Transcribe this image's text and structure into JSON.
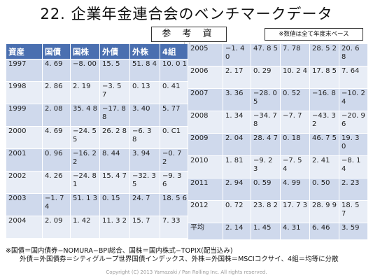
{
  "title": "22. 企業年金連合会のベンチマークデータ",
  "ref_badge": "参 考 資 料",
  "note_top_right": "※数値は全て年度末ベース",
  "headers": [
    "資産",
    "国債",
    "国株",
    "外債",
    "外株",
    "4組"
  ],
  "left_rows": [
    [
      "1997",
      "4. 69",
      "−8. 00",
      "15. 5",
      "51. 8 4",
      "10. 0 1"
    ],
    [
      "1998",
      "2. 86",
      "2. 19",
      "−3. 5 7",
      "0. 13",
      "0. 41"
    ],
    [
      "1999",
      "2. 08",
      "35. 4 8",
      "−17. 88",
      "3. 40",
      "5. 77"
    ],
    [
      "2000",
      "4. 69",
      "−24. 55",
      "26. 2 8",
      "−6. 3 8",
      "0. C1"
    ],
    [
      "2001",
      "0. 96",
      "−16. 22",
      "8. 44",
      "3. 94",
      "−0. 7 2"
    ],
    [
      "2002",
      "4. 26",
      "−24. 81",
      "15. 4 7",
      "−32. 35",
      "−9. 3 6"
    ],
    [
      "2003",
      "−1. 7 4",
      "51. 1 3",
      "0. 15",
      "24. 7",
      "18. 5 6"
    ],
    [
      "2004",
      "2. 09",
      "1. 42",
      "11. 3 2",
      "15. 7",
      "7. 33"
    ]
  ],
  "right_rows": [
    [
      "2005",
      "−1. 4 0",
      "47. 8 5",
      "7. 78",
      "28. 5 2",
      "20. 6 8"
    ],
    [
      "2006",
      "2. 17",
      "0. 29",
      "10. 2 4",
      "17. 8 5",
      "7. 64"
    ],
    [
      "2007",
      "3. 36",
      "−28. 05",
      "0. 52",
      "−16. 8",
      "−10. 24"
    ],
    [
      "2008",
      "1. 34",
      "−34. 78",
      "−7. 7",
      "−43. 32",
      "−20. 96"
    ],
    [
      "2009",
      "2. 04",
      "28. 4 7",
      "0. 18",
      "46. 7 5",
      "19. 3 0"
    ],
    [
      "2010",
      "1. 81",
      "−9. 2 3",
      "−7. 5 4",
      "2. 41",
      "−8. 1 4"
    ],
    [
      "2011",
      "2. 94",
      "0. 59",
      "4. 99",
      "0. 50",
      "2. 23"
    ],
    [
      "2012",
      "0. 72",
      "23. 8 2",
      "17. 7 3",
      "28. 9 9",
      "18. 5 7"
    ],
    [
      "平均",
      "2. 14",
      "1. 45",
      "4. 31",
      "6. 46",
      "3. 59"
    ]
  ],
  "footnote_line1": "※国債＝国内債券−NOMURA−BPI総合、国株＝国内株式−TOPIX(配当込み)",
  "footnote_line2": "外債＝外国債券＝シティグループ世界国債インデックス、外株＝外国株＝MSCIコクサイ、4組＝均等に分散",
  "copyright": "Copyright (C) 2013 Yamazaki / Pan Rolling Inc. All rights reserved."
}
